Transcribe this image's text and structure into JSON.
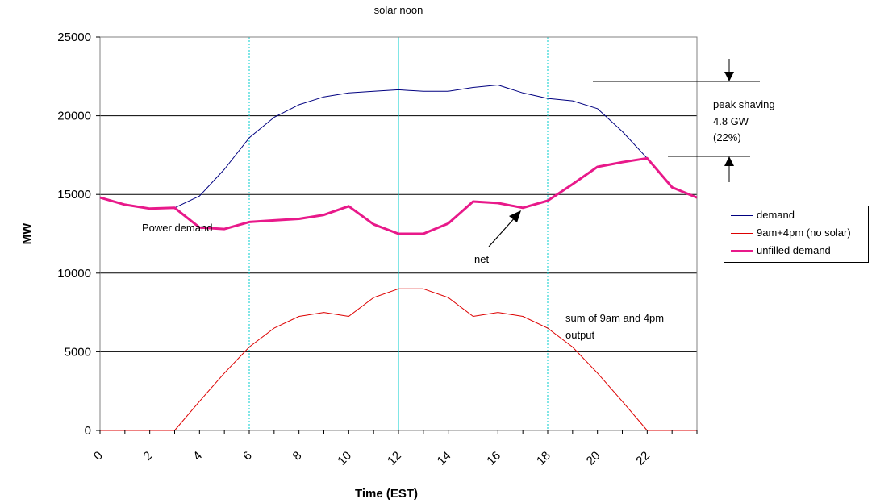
{
  "chart_data": {
    "type": "line",
    "title": "",
    "xlabel": "Time (EST)",
    "ylabel": "MW",
    "xlim": [
      0,
      24
    ],
    "ylim": [
      0,
      25000
    ],
    "x_ticks": [
      "0",
      "2",
      "4",
      "6",
      "8",
      "10",
      "12",
      "14",
      "16",
      "18",
      "20",
      "22"
    ],
    "y_ticks": [
      "0",
      "5000",
      "10000",
      "15000",
      "20000",
      "25000"
    ],
    "grid": "horizontal",
    "legend_position": "right",
    "x": [
      0,
      1,
      2,
      3,
      4,
      5,
      6,
      7,
      8,
      9,
      10,
      11,
      12,
      13,
      14,
      15,
      16,
      17,
      18,
      19,
      20,
      21,
      22,
      23,
      24
    ],
    "series": [
      {
        "name": "demand",
        "color": "#000080",
        "width": 1,
        "values": [
          14800,
          14350,
          14100,
          14150,
          14900,
          16600,
          18600,
          19900,
          20700,
          21200,
          21450,
          21550,
          21650,
          21550,
          21550,
          21800,
          21950,
          21450,
          21100,
          20950,
          20450,
          19000,
          17300,
          15450,
          14800
        ]
      },
      {
        "name": "9am+4pm (no solar)",
        "color": "#dd0000",
        "width": 1,
        "values": [
          0,
          0,
          0,
          0,
          1850,
          3650,
          5300,
          6500,
          7250,
          7500,
          7250,
          8450,
          9000,
          9000,
          8450,
          7250,
          7500,
          7250,
          6500,
          5300,
          3650,
          1850,
          0,
          0,
          0
        ]
      },
      {
        "name": "unfilled demand",
        "color": "#e8198a",
        "width": 3,
        "values": [
          14800,
          14350,
          14100,
          14150,
          12900,
          12800,
          13250,
          13350,
          13450,
          13700,
          14250,
          13100,
          12500,
          12500,
          13150,
          14550,
          14450,
          14150,
          14600,
          15650,
          16750,
          17050,
          17300,
          15450,
          14800
        ]
      }
    ],
    "vertical_lines": [
      {
        "x": 6,
        "style": "dotted",
        "color": "#00cccc"
      },
      {
        "x": 12,
        "style": "solid",
        "color": "#00cccc"
      },
      {
        "x": 18,
        "style": "dotted",
        "color": "#00cccc"
      }
    ],
    "annotations": {
      "solar_noon": "solar noon",
      "power_demand": "Power demand",
      "net": "net",
      "sum_line1": "sum of 9am and 4pm",
      "sum_line2": "output",
      "peak1": "peak shaving",
      "peak2": "4.8 GW",
      "peak3": "(22%)"
    }
  }
}
